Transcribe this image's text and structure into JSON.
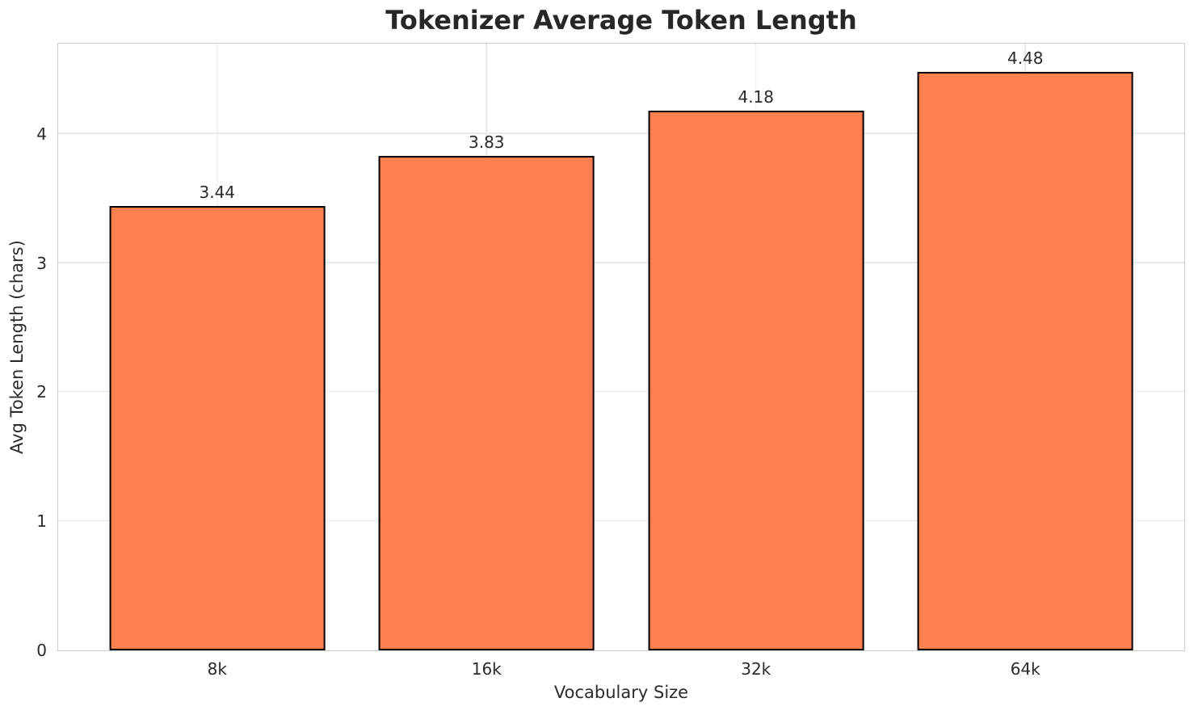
{
  "chart_data": {
    "type": "bar",
    "title": "Tokenizer Average Token Length",
    "xlabel": "Vocabulary Size",
    "ylabel": "Avg Token Length (chars)",
    "categories": [
      "8k",
      "16k",
      "32k",
      "64k"
    ],
    "values": [
      3.44,
      3.83,
      4.18,
      4.48
    ],
    "value_labels": [
      "3.44",
      "3.83",
      "4.18",
      "4.48"
    ],
    "ytick_values": [
      0,
      1,
      2,
      3,
      4
    ],
    "ytick_labels": [
      "0",
      "1",
      "2",
      "3",
      "4"
    ],
    "ylim": [
      0,
      4.7
    ],
    "grid": true,
    "grid_orientation": "both",
    "legend": "none",
    "bar_color": "#FF7F50",
    "bar_edge_color": "#000000",
    "grid_color": "#e9e9e9",
    "spine_color": "#cccccc",
    "text_color": "#2b2b2b",
    "background_color": "#ffffff"
  }
}
